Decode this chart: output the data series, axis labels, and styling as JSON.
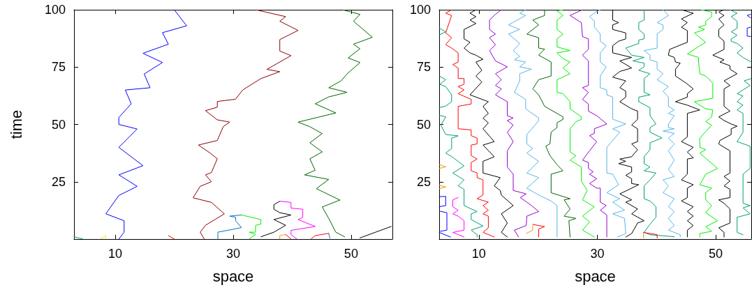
{
  "chart_data": [
    {
      "type": "line",
      "xlabel": "space",
      "ylabel": "time",
      "xlim": [
        3,
        57
      ],
      "xticks": [
        10,
        30,
        50
      ],
      "ylim": [
        0,
        100
      ],
      "yticks": [
        25,
        50,
        75,
        100
      ],
      "series": [
        {
          "color": "#0000ff",
          "x": [
            20.0,
            22.1,
            18.0,
            19.0,
            14.7,
            18.0,
            14.9,
            15.9,
            11.7,
            12.7,
            10.6,
            10.6,
            13.7,
            10.6,
            14.7,
            10.6,
            13.7,
            10.6,
            8.4,
            11.5,
            11.5,
            10.6
          ],
          "values": [
            100,
            93,
            90,
            85,
            81,
            77,
            72,
            66,
            65,
            59,
            53,
            50,
            48,
            40,
            32,
            28,
            23,
            19,
            11,
            8,
            3,
            0
          ]
        },
        {
          "color": "#8b0000",
          "x": [
            33.8,
            38.9,
            37.9,
            41.0,
            37.9,
            37.9,
            39.8,
            35.7,
            37.9,
            34.7,
            31.6,
            30.4,
            27.3,
            27.3,
            25.3,
            27.3,
            29.4,
            28.3,
            27.3,
            24.1,
            26.1,
            27.3,
            26.3,
            25.3,
            26.3,
            24.4,
            23.2,
            26.3,
            28.5,
            25.3,
            24.4,
            25.1
          ],
          "values": [
            100,
            97,
            95,
            91,
            87,
            82,
            80,
            74,
            73,
            70,
            65,
            61,
            60,
            57.5,
            56,
            52,
            51,
            49,
            43,
            41,
            37.5,
            35,
            29,
            28,
            25,
            23,
            18,
            16,
            11,
            6,
            3,
            0
          ]
        },
        {
          "color": "#006400",
          "x": [
            48.5,
            51.5,
            50.4,
            53.6,
            50.4,
            51.5,
            49.5,
            51.5,
            49.3,
            48.3,
            46.2,
            49.3,
            46.2,
            43.9,
            47.4,
            41.0,
            43.0,
            45.1,
            43.0,
            45.1,
            43.0,
            43.9,
            42.1,
            46.2,
            44.1,
            48.1,
            45.1,
            46.2,
            47.4,
            48.9
          ],
          "values": [
            100,
            98,
            95,
            88,
            85,
            83,
            79,
            77,
            72,
            69,
            66,
            64,
            62,
            59,
            55,
            51,
            49,
            46,
            42,
            38,
            35,
            30,
            28,
            26,
            22,
            17,
            14,
            9,
            3,
            1
          ]
        },
        {
          "color": "#000000",
          "x": [
            51.5,
            56.8
          ],
          "values": [
            0.5,
            5.5
          ]
        },
        {
          "color": "#0072b2",
          "x": [
            27.4,
            27.4,
            31.4,
            30.4,
            30.4,
            29.4,
            31.4
          ],
          "values": [
            0,
            3,
            5,
            8,
            9.5,
            10,
            10.5
          ]
        },
        {
          "color": "#00ee00",
          "x": [
            31.4,
            34.7,
            34.7,
            33.8,
            33.8,
            32.7,
            33.8,
            32.7
          ],
          "values": [
            10.5,
            8.5,
            6.5,
            6,
            3,
            3,
            2,
            0
          ]
        },
        {
          "color": "#000000",
          "x": [
            34.7,
            36.9,
            38.9,
            36.9,
            39.8,
            37.9,
            36.9,
            36.9,
            37.9
          ],
          "values": [
            1,
            3,
            6,
            8.5,
            10.5,
            11.5,
            13,
            15,
            16.5
          ]
        },
        {
          "color": "#ff00ff",
          "x": [
            37.9,
            39.8,
            39.8,
            41.8,
            41.8,
            41.0,
            43.9,
            39.8,
            39.8,
            40.8
          ],
          "values": [
            16.5,
            16,
            13.5,
            13,
            9.5,
            8.5,
            5.5,
            3.8,
            2,
            0
          ]
        },
        {
          "color": "#e69f00",
          "x": [
            37.9,
            37.9,
            38.9
          ],
          "values": [
            0,
            1.5,
            2
          ]
        },
        {
          "color": "#ff0000",
          "x": [
            38.9,
            39.8
          ],
          "values": [
            2,
            0
          ]
        },
        {
          "color": "#ff0000",
          "x": [
            43.2,
            43.9,
            46.2
          ],
          "values": [
            0,
            1.5,
            2.5
          ]
        },
        {
          "color": "#0072b2",
          "x": [
            46.2,
            46.4
          ],
          "values": [
            2.5,
            0.4
          ]
        },
        {
          "color": "#009e73",
          "x": [
            3,
            4.5
          ],
          "values": [
            1,
            0
          ]
        },
        {
          "color": "#f0e442",
          "x": [
            7.4,
            8.4,
            8.4
          ],
          "values": [
            0,
            1.5,
            0
          ]
        },
        {
          "color": "#ff0000",
          "x": [
            19,
            20
          ],
          "values": [
            1.5,
            0
          ]
        }
      ]
    },
    {
      "type": "line",
      "xlabel": "space",
      "xlim": [
        3.3,
        56
      ],
      "xticks": [
        10,
        30,
        50
      ],
      "ylim": [
        0,
        100
      ],
      "yticks": [
        25,
        50,
        75,
        100
      ],
      "series": [
        {
          "color": "#009e73",
          "x": [
            3.3,
            4.4,
            3.3
          ],
          "values": [
            92,
            90.4,
            89
          ]
        },
        {
          "color": "#009e73",
          "x": [
            3.4,
            4.4,
            3.4,
            4.4,
            5.4,
            5.4,
            4.4,
            3.3
          ],
          "values": [
            71,
            69.5,
            67.5,
            66.5,
            62.9,
            59.9,
            58,
            57.3
          ]
        },
        {
          "color": "#009e73",
          "x": [
            3.3,
            4.4,
            3.6,
            4.4,
            6.5,
            5.4,
            5.4,
            4.4,
            5.4,
            7.5,
            5.6,
            7.5,
            6.5,
            7.5,
            7.5,
            9.7,
            8.7,
            8.7,
            10.7,
            8.7,
            9.7,
            9.7
          ],
          "values": [
            54,
            53.3,
            49.7,
            45.6,
            45,
            44,
            39.5,
            37.5,
            36,
            31.9,
            28.8,
            25.8,
            23.2,
            21.7,
            14.6,
            12,
            11,
            8.5,
            5.7,
            3.9,
            1.9,
            0.9
          ]
        },
        {
          "color": "#ff0000",
          "x": [
            5.4,
            4.4,
            5.4,
            4.4,
            5.4,
            4.4,
            5.4,
            6.5,
            6.5,
            5.6,
            6.5,
            6.5,
            7.5,
            7.5,
            6.5,
            7.5,
            6.5,
            8.7,
            8.7,
            6.5,
            6.5,
            6.5,
            8.7,
            8.7,
            9.7,
            9.7,
            8.7,
            8.7,
            9.7,
            8.7,
            8.7,
            9.7,
            9.7,
            10.7,
            10.7,
            9.7,
            11.6,
            10.7,
            11.6,
            10.7,
            11.6,
            11.6,
            10.7,
            12.6
          ],
          "values": [
            100,
            98.5,
            97.5,
            89.9,
            87.8,
            84.8,
            83.3,
            81.2,
            77.2,
            76.1,
            74.6,
            70,
            70,
            67.5,
            66.5,
            65,
            63.4,
            60.9,
            58.9,
            57.9,
            49.7,
            48.1,
            47.6,
            45.1,
            44,
            41.5,
            41,
            36.4,
            34.9,
            33.4,
            29.8,
            28.8,
            26.8,
            25.8,
            19.2,
            17.6,
            16.1,
            14.6,
            12.6,
            11,
            10,
            4.9,
            2.9,
            0.9
          ]
        },
        {
          "color": "#000000",
          "x": [
            9.5,
            8.5,
            9.5,
            8.5,
            9.5,
            7.5,
            7.5,
            8.5,
            7.5,
            8.5,
            9.5,
            10.7,
            9.5,
            10.5,
            9.5,
            10.5,
            8.5,
            11.6,
            10.7,
            11.6,
            10.7,
            11.6,
            10.7,
            12.6,
            10.7,
            12.6,
            10.7,
            10.7,
            13.6,
            12.6,
            13.6,
            13.8,
            15.8,
            13.8,
            14.8,
            13.8,
            14.8
          ],
          "values": [
            100,
            98.5,
            97,
            95.5,
            94,
            91.4,
            87.3,
            85.8,
            83.3,
            81.2,
            80.2,
            78.4,
            77.2,
            73.6,
            71.1,
            68.5,
            62.9,
            59.9,
            57.9,
            54.8,
            52.7,
            50.7,
            48.1,
            42.5,
            41,
            35.9,
            33.9,
            28.8,
            26.8,
            23.2,
            21.2,
            19.2,
            14.6,
            11,
            7,
            2.9,
            0.9
          ]
        },
        {
          "color": "#9400d3",
          "x": [
            13.8,
            12.8,
            11.8,
            11.8,
            12.8,
            11.8,
            12.8,
            11.8,
            12.8,
            14.8,
            12.8,
            13.8,
            12.8,
            13.8,
            12.8,
            14.8,
            14.8,
            15.8,
            14.8,
            15.8,
            14.8,
            15.8,
            14.8,
            14.8,
            15.8,
            15.8,
            18.0,
            17.0,
            18.9,
            20.1,
            18.1,
            18.0,
            16.0,
            16.7
          ],
          "values": [
            100,
            98,
            95.5,
            91.4,
            89.4,
            87.8,
            84.8,
            82.2,
            77.7,
            75.1,
            72.1,
            69.5,
            67,
            65.5,
            62.9,
            59.9,
            53.8,
            52.8,
            51.7,
            49.7,
            46.6,
            42.5,
            38.5,
            31.4,
            28.3,
            21.2,
            19.7,
            18.1,
            14.6,
            12,
            10,
            5.9,
            3.9,
            0.9
          ]
        },
        {
          "color": "#56b4e9",
          "x": [
            17.9,
            16.9,
            17.9,
            15.0,
            16.9,
            15.0,
            16.9,
            15.8,
            16.9,
            16.0,
            17.9,
            16.9,
            18.9,
            16.9,
            16.9,
            16.0,
            17.9,
            17.9,
            20.1,
            20.1,
            19.1,
            18.1,
            18.1,
            19.1,
            18.1,
            20.1,
            18.1,
            20.1,
            18.1,
            20.1,
            22.2,
            23.2,
            23.2
          ],
          "values": [
            100,
            98.5,
            97.5,
            93.4,
            91.4,
            89.4,
            85.3,
            82.2,
            79.7,
            78.2,
            77.2,
            75.1,
            74.1,
            72.1,
            69,
            64,
            60.9,
            56.8,
            52.8,
            51.7,
            48.6,
            45.6,
            41.5,
            39.5,
            37.5,
            33.9,
            28.8,
            26.8,
            22.2,
            19.2,
            16.6,
            14.6,
            0.9
          ]
        },
        {
          "color": "#006400",
          "x": [
            21.1,
            21.1,
            19.1,
            20.1,
            18.1,
            20.1,
            20.1,
            21.1,
            20.1,
            22.2,
            22.2,
            20.1,
            19.1,
            20.1,
            21.1,
            24.2,
            24.2,
            23.2,
            23.2,
            22.2,
            22.0,
            21.3,
            22.0,
            23.2,
            24.2,
            22.2,
            22.2,
            25.4,
            24.4,
            25.4,
            24.4,
            26.4,
            25.2,
            25.4
          ],
          "values": [
            100,
            97.5,
            95.5,
            93.4,
            89.4,
            87.8,
            83.3,
            82.8,
            80.2,
            77.2,
            71.1,
            69.5,
            65.5,
            62.9,
            57.9,
            53.3,
            52.2,
            50.7,
            48.6,
            46.6,
            41.5,
            40.5,
            36.4,
            32.4,
            29.8,
            28.3,
            20.2,
            17.6,
            17.1,
            13.1,
            10,
            9,
            8,
            0.9
          ]
        },
        {
          "color": "#00ee00",
          "x": [
            24.2,
            23.2,
            24.2,
            23.2,
            23.2,
            24.2,
            23.2,
            23.2,
            25.4,
            23.2,
            24.2,
            25.4,
            24.2,
            25.4,
            23.2,
            23.2,
            24.2,
            25.4,
            25.4,
            27.3,
            27.3,
            26.4,
            25.4,
            25.4,
            26.4,
            25.4,
            27.3,
            27.3,
            28.3,
            27.5,
            29.5,
            27.5,
            28.7,
            27.5,
            29.5
          ],
          "values": [
            100,
            99.5,
            97.5,
            95.5,
            91.4,
            89.4,
            87.3,
            83.8,
            82.2,
            81.2,
            78.7,
            77.2,
            74.6,
            72.1,
            69.5,
            64,
            63.4,
            59.9,
            56.8,
            53.3,
            52.2,
            51.2,
            48.1,
            38,
            36.4,
            34.4,
            31.4,
            25.3,
            21.2,
            17.1,
            14.1,
            10,
            7.5,
            3.9,
            0.9
          ]
        },
        {
          "color": "#9400d3",
          "x": [
            27.5,
            25.4,
            27.3,
            27.5,
            28.5,
            28.5,
            27.5,
            28.5,
            28.5,
            27.5,
            28.5,
            27.5,
            28.5,
            28.5,
            29.9,
            31.6,
            29.5,
            29.5,
            28.7,
            29.9,
            28.7,
            27.5,
            28.5,
            28.5,
            29.3,
            28.7,
            29.9,
            28.7,
            29.9,
            30.5,
            30.5,
            31.5,
            30.5,
            31.6,
            31.6
          ],
          "values": [
            100,
            97.5,
            94.4,
            88.3,
            87.3,
            82.8,
            80.2,
            77.7,
            67,
            66,
            64,
            60.9,
            58.9,
            55.8,
            53.8,
            50.2,
            48.1,
            46.1,
            45.1,
            42.5,
            38.5,
            34.4,
            33.4,
            30.8,
            29.3,
            28.3,
            26.3,
            24.2,
            22.2,
            22.2,
            16.1,
            14.6,
            12.6,
            10.5,
            0.9
          ]
        },
        {
          "color": "#56b4e9",
          "x": [
            30.5,
            29.7,
            28.7,
            29.5,
            29.5,
            29.7,
            30.5,
            30.5,
            31.5,
            30.5,
            30.5,
            31.5,
            30.5,
            30.5,
            31.6,
            31.6,
            32.6,
            32.6,
            34.8,
            32.6,
            33.8,
            31.6,
            31.6,
            32.6,
            33.6,
            31.6,
            33.8,
            32.6,
            34.6,
            32.6,
            34.6,
            34.8,
            33.4
          ],
          "values": [
            100,
            99,
            97,
            95,
            92.4,
            91.9,
            89.4,
            86.3,
            84.3,
            81.2,
            77.2,
            75.1,
            71.1,
            66,
            65,
            62.9,
            61.9,
            52.3,
            50.2,
            48.1,
            46.6,
            40,
            28.8,
            28.3,
            23.7,
            20.2,
            17.6,
            16.1,
            12.6,
            11,
            9,
            2.4,
            0.9
          ]
        },
        {
          "color": "#000000",
          "x": [
            32.6,
            32.6,
            33.6,
            32.6,
            32.6,
            34.8,
            34.8,
            33.6,
            32.6,
            32.6,
            35.8,
            33.8,
            35.8,
            33.8,
            32.6,
            34.8,
            33.8,
            34.8,
            34.8,
            33.8,
            35.8,
            36.8,
            36.8,
            35.8,
            36.8,
            36.8,
            35.8,
            36.8,
            35.8,
            33.8,
            34.8,
            33.6,
            35.8,
            35.8,
            34.8,
            35.8,
            35.8,
            37.0,
            33.8,
            35.8,
            34.8,
            36.8,
            35.8,
            37.9,
            36.8,
            35.8,
            34.8
          ],
          "values": [
            100,
            95.5,
            94.4,
            93.4,
            91.4,
            89.9,
            87.3,
            86.3,
            84.3,
            81.2,
            79.2,
            77.7,
            74.6,
            73.1,
            70.6,
            69,
            66,
            64.5,
            61.9,
            59.9,
            56.8,
            55.8,
            52.2,
            49.7,
            48.1,
            42.5,
            41.5,
            39,
            35.9,
            34.9,
            33.9,
            32.9,
            31.4,
            29.3,
            27.8,
            26.3,
            24.2,
            23.7,
            19.7,
            17.1,
            16.1,
            13.1,
            11,
            8,
            7,
            2.4,
            0.9
          ]
        },
        {
          "color": "#009e73",
          "x": [
            37.9,
            37.9,
            37.0,
            37.0,
            37.9,
            37.9,
            37.0,
            37.0,
            34.8,
            35.8,
            37.9,
            36.0,
            37.9,
            37.9,
            37.0,
            38.9,
            37.9,
            37.9,
            38.9,
            37.0,
            37.0,
            38.9,
            38.9,
            39.9,
            38.9,
            38.9,
            40.9,
            38.9,
            38.9,
            37.9,
            37.9,
            38.9,
            37.9,
            39.9,
            38.9,
            37.9,
            37.9,
            38.9,
            39.9,
            39.9,
            38.9,
            37.9,
            38.9,
            43.0
          ],
          "values": [
            100,
            95.5,
            94.4,
            91.4,
            89.4,
            87.3,
            86.8,
            85.3,
            83.3,
            80.2,
            79.2,
            77.7,
            76.7,
            75.1,
            73.6,
            72.1,
            70,
            64,
            62.9,
            61.9,
            59.9,
            57.3,
            53.8,
            50.2,
            48.6,
            46.6,
            44.1,
            42,
            39,
            35.9,
            32.9,
            31.4,
            29.8,
            28.8,
            25.8,
            23.2,
            17.6,
            16.6,
            14.1,
            9.5,
            6.5,
            2.9,
            1.9,
            1
          ]
        },
        {
          "color": "#e69f00",
          "x": [
            37.8,
            37.8
          ],
          "values": [
            0.5,
            2.9
          ]
        },
        {
          "color": "#ff0000",
          "x": [
            37.8,
            40.1,
            40.1
          ],
          "values": [
            2.9,
            1.9,
            0.5
          ]
        },
        {
          "color": "#56b4e9",
          "x": [
            41.1,
            42.0,
            40.1,
            41.1,
            41.1,
            40.1,
            40.1,
            37.9,
            38.9,
            38.9,
            40.1,
            40.1,
            41.1,
            40.1,
            42.0,
            41.1,
            42.0,
            42.0,
            43.0,
            42.0,
            43.0,
            42.0,
            42.0,
            43.0,
            41.1,
            43.0,
            42.0,
            43.0,
            42.0,
            43.0,
            42.0,
            43.0,
            41.1,
            42.0,
            41.1,
            43.0,
            42.0,
            43.0,
            42.0,
            43.0,
            42.0,
            44.0,
            44.0
          ],
          "values": [
            100,
            97.5,
            94.4,
            93.4,
            91.4,
            89.4,
            83.3,
            82.2,
            80.2,
            78.2,
            77.2,
            74.1,
            72.1,
            69.5,
            66.5,
            64.5,
            61.9,
            57.9,
            56.3,
            54.8,
            53.8,
            50.2,
            48.6,
            48.1,
            47.1,
            46.1,
            44,
            41.5,
            38.5,
            34.4,
            30.3,
            27.3,
            25.8,
            23.2,
            20.2,
            17.6,
            14.1,
            12,
            9,
            5.9,
            3.9,
            1.9,
            0.9
          ]
        },
        {
          "color": "#000000",
          "x": [
            44.2,
            46.2,
            44.2,
            45.2,
            44.2,
            45.2,
            45.2,
            44.2,
            42.2,
            42.0,
            43.0,
            43.2,
            44.0,
            43.2,
            43.2,
            45.0,
            46.2,
            45.2,
            45.2,
            44.2,
            43.2,
            45.2,
            47.3,
            45.2,
            45.2,
            44.2,
            46.2,
            45.2,
            46.2,
            45.2,
            45.2,
            44.2,
            46.2,
            45.2,
            45.2,
            44.2,
            46.2,
            45.2,
            46.2,
            45.2,
            46.2,
            45.2,
            45.2
          ],
          "values": [
            100,
            98.5,
            96,
            94.4,
            92.4,
            90.9,
            85.8,
            84.8,
            82.7,
            80.2,
            79.2,
            77.2,
            76.7,
            74.1,
            71.1,
            68,
            65.5,
            63.4,
            61.9,
            60.9,
            59.9,
            58.4,
            56.3,
            54.8,
            44.6,
            42.5,
            40,
            38,
            35.4,
            34.9,
            28.3,
            25.8,
            23.7,
            22.2,
            18.1,
            16.6,
            14.1,
            12,
            10,
            8,
            5.9,
            3.9,
            0.9
          ]
        },
        {
          "color": "#00ee00",
          "x": [
            47.5,
            49.3,
            49.3,
            48.3,
            48.3,
            47.1,
            48.1,
            46.4,
            47.1,
            48.3,
            47.3,
            45.2,
            47.1,
            47.1,
            47.3,
            48.3,
            49.5,
            49.5,
            46.4,
            48.3,
            49.5,
            49.3,
            48.3,
            49.3,
            47.3,
            47.3,
            48.3,
            47.3,
            50.3,
            48.3,
            47.3,
            49.3,
            48.3,
            48.3,
            49.3,
            48.3,
            50.3,
            48.3,
            49.3,
            47.3,
            47.3
          ],
          "values": [
            100,
            99,
            97,
            95,
            93.4,
            92.4,
            91.4,
            89.9,
            88.3,
            85.8,
            84.3,
            80.7,
            79.2,
            77.2,
            72.1,
            71.1,
            68,
            61.4,
            59.9,
            56.8,
            56.3,
            53.3,
            51.2,
            49.7,
            44,
            40,
            39,
            37.5,
            30.8,
            28.3,
            23.7,
            22.2,
            20.2,
            17.1,
            14.6,
            11.5,
            8,
            5.4,
            3.4,
            2.4,
            0.9
          ]
        },
        {
          "color": "#000000",
          "x": [
            51.4,
            50.5,
            51.4,
            50.5,
            51.4,
            50.5,
            50.5,
            51.4,
            51.4,
            49.5,
            51.4,
            50.7,
            52.4,
            52.4,
            53.6,
            51.4,
            52.4,
            51.4,
            51.4,
            52.4,
            50.5,
            51.4,
            52.6,
            53.6,
            52.6,
            52.6,
            50.7,
            50.5,
            51.4,
            52.4,
            52.4,
            51.4,
            52.4,
            51.4,
            52.4,
            52.4,
            50.5,
            51.4,
            52.4,
            52.4,
            50.5,
            51.4,
            51.4
          ],
          "values": [
            100,
            99,
            97.5,
            96,
            93.4,
            91.4,
            88.3,
            86.3,
            82.7,
            80.2,
            78.2,
            77.2,
            75.6,
            74.1,
            72.1,
            69,
            67,
            65.5,
            57.9,
            55.8,
            53.3,
            51.7,
            50.2,
            49.2,
            48.1,
            45.6,
            43,
            41.5,
            40,
            38.5,
            28.8,
            27.3,
            25.3,
            23.2,
            21.7,
            18.1,
            17.1,
            15.6,
            13.1,
            7,
            4.9,
            2.9,
            0.9
          ]
        },
        {
          "color": "#009e73",
          "x": [
            52.4,
            53.6,
            52.6,
            53.6,
            53.6,
            52.6,
            53.6,
            52.6,
            52.6,
            53.6,
            54.6,
            53.6,
            54.6,
            56.0
          ],
          "values": [
            100,
            98.5,
            97,
            95,
            91.9,
            90.4,
            88.9,
            87.3,
            86.3,
            85.3,
            83.3,
            81.2,
            79.2,
            77.2
          ]
        },
        {
          "color": "#009e73",
          "x": [
            56.0,
            54.8,
            55.8,
            53.6,
            54.6,
            53.6,
            54.6,
            53.6,
            54.6,
            54.6,
            54.6,
            53.6,
            55.8,
            55.8,
            54.6,
            54.6,
            55.8,
            54.6,
            55.8,
            53.6,
            53.6,
            54.6
          ],
          "values": [
            70,
            69,
            67,
            63.4,
            62.4,
            59.9,
            58.4,
            56.3,
            54.8,
            50.2,
            46.6,
            42.5,
            40.5,
            30.8,
            28.3,
            15.6,
            14.6,
            13.6,
            11,
            9.5,
            2.9,
            1.9
          ]
        },
        {
          "color": "#0000ff",
          "x": [
            55.9,
            55.3,
            55.9
          ],
          "values": [
            98,
            97.5,
            96.5
          ]
        },
        {
          "color": "#0000ff",
          "x": [
            55.9,
            55.3,
            55.3,
            55.9
          ],
          "values": [
            92.4,
            92,
            88.5,
            88.3
          ]
        },
        {
          "color": "#e69f00",
          "x": [
            3.3,
            4.4,
            3.3
          ],
          "values": [
            32.5,
            31.5,
            30.8
          ]
        },
        {
          "color": "#e69f00",
          "x": [
            3.3,
            4.4,
            3.3
          ],
          "values": [
            23.5,
            22.7,
            22
          ]
        },
        {
          "color": "#0000ff",
          "x": [
            3.3,
            4.4,
            4.4,
            3.3
          ],
          "values": [
            18.5,
            18.6,
            14.6,
            14.1
          ]
        },
        {
          "color": "#0000ff",
          "x": [
            3.5,
            4.6,
            4.6,
            3.5
          ],
          "values": [
            12.1,
            11.5,
            3.9,
            3.4
          ]
        },
        {
          "color": "#0000ff",
          "x": [
            3.3,
            5.2
          ],
          "values": [
            2.9,
            0.9
          ]
        },
        {
          "color": "#ff00ff",
          "x": [
            6.5,
            5.6,
            5.6,
            6.5,
            5.6,
            6.5,
            7.5,
            7.5,
            5.6,
            7.5
          ],
          "values": [
            18.1,
            17.1,
            14.1,
            12.6,
            11,
            10,
            8,
            3.9,
            2.9,
            0.9
          ]
        },
        {
          "color": "#e69f00",
          "x": [
            18.0,
            19.1,
            19.1
          ],
          "values": [
            2.4,
            3.9,
            5.9
          ]
        },
        {
          "color": "#ff0000",
          "x": [
            19.1,
            21.1,
            20.1,
            20.1
          ],
          "values": [
            6.4,
            5.4,
            4.4,
            0.9
          ]
        }
      ]
    }
  ]
}
